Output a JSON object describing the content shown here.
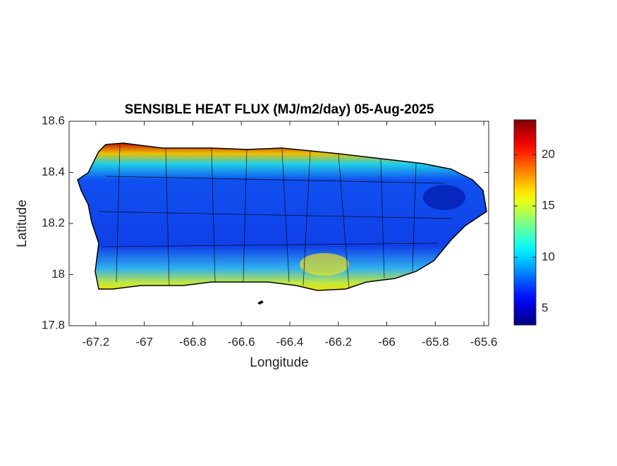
{
  "chart_data": {
    "type": "heatmap-map",
    "title": "SENSIBLE HEAT FLUX (MJ/m2/day) 05-Aug-2025",
    "x_label": "Longitude",
    "y_label": "Latitude",
    "xlim": [
      -67.31,
      -65.58
    ],
    "xticks": [
      -67.2,
      -67,
      -66.8,
      -66.6,
      -66.4,
      -66.2,
      -66,
      -65.8,
      -65.6
    ],
    "ylim": [
      17.8,
      18.6
    ],
    "yticks": [
      17.8,
      18,
      18.2,
      18.4,
      18.6
    ],
    "colormap": "jet",
    "clim": [
      3.4,
      23.4
    ],
    "cticks": [
      5,
      10,
      15,
      20
    ]
  }
}
